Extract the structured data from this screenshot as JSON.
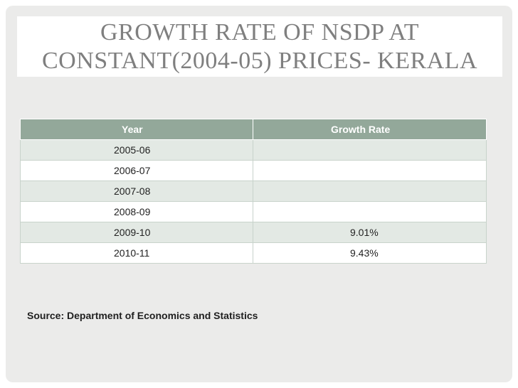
{
  "title": {
    "line1": "GROWTH RATE OF NSDP AT",
    "line2": "CONSTANT(2004-05) PRICES- KERALA"
  },
  "table": {
    "headers": [
      "Year",
      "Growth Rate"
    ],
    "rows": [
      {
        "year": "2005-06",
        "growth_rate": ""
      },
      {
        "year": "2006-07",
        "growth_rate": ""
      },
      {
        "year": "2007-08",
        "growth_rate": ""
      },
      {
        "year": "2008-09",
        "growth_rate": ""
      },
      {
        "year": "2009-10",
        "growth_rate": "9.01%"
      },
      {
        "year": "2010-11",
        "growth_rate": "9.43%"
      }
    ]
  },
  "source": "Source: Department of Economics and Statistics",
  "colors": {
    "header_bg": "#93a89a",
    "band_bg": "#e3e9e4",
    "slide_bg": "#ebebea",
    "title_color": "#7f7f7f"
  }
}
